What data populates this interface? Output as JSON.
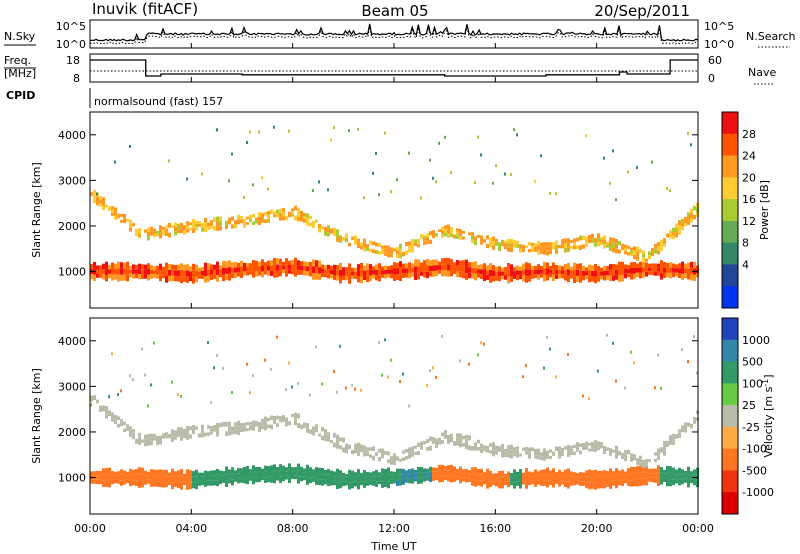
{
  "header": {
    "station": "Inuvik (fitACF)",
    "beam": "Beam 05",
    "date": "20/Sep/2011"
  },
  "noise_panel": {
    "left_label": "N.Sky",
    "right_label": "N.Search",
    "left_ticks": [
      "10^5",
      "10^0"
    ],
    "right_ticks": [
      "10^5",
      "10^0"
    ]
  },
  "freq_panel": {
    "left_label_line1": "Freq.",
    "left_label_line2": "[MHz]",
    "right_label": "Nave",
    "left_ticks": [
      "18",
      "8"
    ],
    "right_ticks": [
      "60",
      "0"
    ],
    "freq_steps": [
      [
        0,
        17
      ],
      [
        2.2,
        9
      ],
      [
        2.8,
        10
      ],
      [
        6,
        9.6
      ],
      [
        14,
        9
      ],
      [
        18,
        9.6
      ],
      [
        20.9,
        11
      ],
      [
        21.2,
        10
      ],
      [
        22.9,
        17
      ],
      [
        24,
        17
      ]
    ]
  },
  "cpid": {
    "label": "CPID",
    "program": "normalsound (fast) 157"
  },
  "power_panel": {
    "ylabel": "Slant Range [km]",
    "colorbar_label": "Power [dB]",
    "colorbar_ticks": [
      "28",
      "24",
      "20",
      "16",
      "12",
      "8",
      "4"
    ],
    "colorbar_colors": [
      "#ee1111",
      "#ff5500",
      "#ff9922",
      "#ffcc33",
      "#aacc33",
      "#66aa55",
      "#338866",
      "#224499",
      "#0033ee"
    ],
    "y_ticks": [
      "4000",
      "3000",
      "2000",
      "1000"
    ]
  },
  "velocity_panel": {
    "ylabel": "Slant Range [km]",
    "colorbar_label": "Velocity [m s",
    "colorbar_label_sup": "-1",
    "colorbar_label_end": "]",
    "colorbar_ticks": [
      "1000",
      "500",
      "100",
      "25",
      "-25",
      "-100",
      "-500",
      "-1000"
    ],
    "colorbar_colors": [
      "#2244bb",
      "#3388aa",
      "#339966",
      "#66cc44",
      "#bbbbaa",
      "#ffaa44",
      "#ff7722",
      "#ee3311",
      "#dd0000"
    ],
    "y_ticks": [
      "4000",
      "3000",
      "2000",
      "1000"
    ]
  },
  "x_axis": {
    "label": "Time UT",
    "ticks": [
      "00:00",
      "04:00",
      "08:00",
      "12:00",
      "16:00",
      "20:00",
      "00:00"
    ]
  },
  "chart_data": [
    {
      "type": "heatmap",
      "title": "Power",
      "xlabel": "Time UT",
      "ylabel": "Slant Range [km]",
      "xlim": [
        0,
        24
      ],
      "ylim": [
        200,
        4500
      ],
      "colorbar_label": "Power [dB]",
      "colorbar_ticks": [
        28,
        24,
        20,
        16,
        12,
        8,
        4
      ],
      "bands": [
        {
          "name": "main_lower",
          "range_center": [
            [
              0,
              1000
            ],
            [
              2,
              1000
            ],
            [
              4,
              950
            ],
            [
              6,
              1050
            ],
            [
              8,
              1100
            ],
            [
              10,
              950
            ],
            [
              12,
              1000
            ],
            [
              14,
              1100
            ],
            [
              16,
              950
            ],
            [
              18,
              1000
            ],
            [
              20,
              950
            ],
            [
              22,
              1050
            ],
            [
              24,
              1000
            ]
          ],
          "width": 350,
          "power": 26
        },
        {
          "name": "upper",
          "range_center": [
            [
              0,
              2700
            ],
            [
              2,
              1800
            ],
            [
              4,
              2000
            ],
            [
              6,
              2100
            ],
            [
              8,
              2300
            ],
            [
              10,
              1700
            ],
            [
              12,
              1400
            ],
            [
              14,
              1900
            ],
            [
              16,
              1600
            ],
            [
              18,
              1500
            ],
            [
              20,
              1700
            ],
            [
              22,
              1300
            ],
            [
              24,
              2400
            ]
          ],
          "width": 250,
          "power": 18
        }
      ]
    },
    {
      "type": "heatmap",
      "title": "Velocity",
      "xlabel": "Time UT",
      "ylabel": "Slant Range [km]",
      "xlim": [
        0,
        24
      ],
      "ylim": [
        200,
        4500
      ],
      "colorbar_label": "Velocity [m s-1]",
      "colorbar_ticks": [
        1000,
        500,
        100,
        25,
        -25,
        -100,
        -500,
        -1000
      ],
      "bands": [
        {
          "name": "main_lower",
          "range_center": [
            [
              0,
              1000
            ],
            [
              2,
              1000
            ],
            [
              4,
              950
            ],
            [
              6,
              1050
            ],
            [
              8,
              1100
            ],
            [
              10,
              950
            ],
            [
              12,
              1000
            ],
            [
              14,
              1100
            ],
            [
              16,
              950
            ],
            [
              18,
              1000
            ],
            [
              20,
              950
            ],
            [
              22,
              1050
            ],
            [
              24,
              1000
            ]
          ],
          "width": 350,
          "velocity_by_time": [
            [
              0,
              -200
            ],
            [
              3.5,
              -150
            ],
            [
              4,
              200
            ],
            [
              12,
              300
            ],
            [
              13.5,
              -200
            ],
            [
              16,
              -200
            ],
            [
              16.5,
              200
            ],
            [
              17,
              -150
            ],
            [
              22,
              -200
            ],
            [
              22.5,
              200
            ],
            [
              24,
              200
            ]
          ]
        },
        {
          "name": "upper",
          "range_center": [
            [
              0,
              2700
            ],
            [
              2,
              1800
            ],
            [
              4,
              2000
            ],
            [
              6,
              2100
            ],
            [
              8,
              2300
            ],
            [
              10,
              1700
            ],
            [
              12,
              1400
            ],
            [
              14,
              1900
            ],
            [
              16,
              1600
            ],
            [
              18,
              1500
            ],
            [
              20,
              1700
            ],
            [
              22,
              1300
            ],
            [
              24,
              2400
            ]
          ],
          "width": 250,
          "velocity": 0
        }
      ]
    }
  ]
}
